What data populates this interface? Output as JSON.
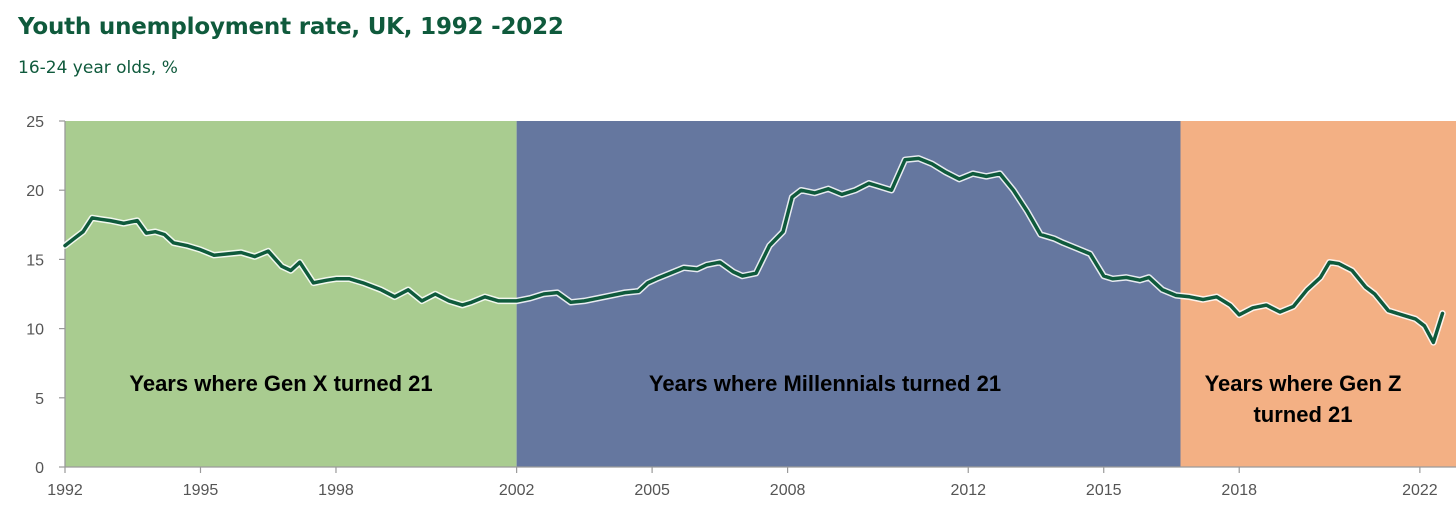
{
  "title": "Youth unemployment rate, UK, 1992 -2022",
  "subtitle": "16-24 year olds, %",
  "chart_data": {
    "type": "line",
    "title": "Youth unemployment rate, UK, 1992 -2022",
    "subtitle": "16-24 year olds, %",
    "xlabel": "",
    "ylabel": "",
    "xlim": [
      1992,
      2022.8
    ],
    "ylim": [
      0,
      25
    ],
    "yticks": [
      0,
      5,
      10,
      15,
      20,
      25
    ],
    "xticks": [
      1992,
      1995,
      1998,
      2002,
      2005,
      2008,
      2012,
      2015,
      2018,
      2022
    ],
    "grid": false,
    "legend": "none",
    "line_color": "#0f5a3c",
    "bands": [
      {
        "start": 1992,
        "end": 2002,
        "color": "#a9cc90",
        "label_lines": [
          "Years where Gen X turned 21"
        ]
      },
      {
        "start": 2002,
        "end": 2016.7,
        "color": "#65779f",
        "label_lines": [
          "Years where Millennials turned 21"
        ]
      },
      {
        "start": 2016.7,
        "end": 2022.8,
        "color": "#f3b084",
        "label_lines": [
          "Years where Gen Z",
          "turned 21"
        ]
      }
    ],
    "series": [
      {
        "x": [
          1992.0,
          1992.2,
          1992.4,
          1992.6,
          1992.8,
          1993.0,
          1993.3,
          1993.6,
          1993.8,
          1994.0,
          1994.2,
          1994.4,
          1994.7,
          1995.0,
          1995.3,
          1995.6,
          1995.9,
          1996.2,
          1996.5,
          1996.8,
          1997.0,
          1997.2,
          1997.5,
          1997.8,
          1998.0,
          1998.3,
          1998.6,
          1999.0,
          1999.3,
          1999.6,
          1999.9,
          2000.2,
          2000.5,
          2000.8,
          2001.0,
          2001.3,
          2001.6,
          2002.0,
          2002.3,
          2002.6,
          2002.9,
          2003.2,
          2003.5,
          2003.8,
          2004.1,
          2004.4,
          2004.7,
          2004.9,
          2005.1,
          2005.4,
          2005.7,
          2006.0,
          2006.2,
          2006.5,
          2006.8,
          2007.0,
          2007.3,
          2007.6,
          2007.9,
          2008.1,
          2008.3,
          2008.6,
          2008.9,
          2009.2,
          2009.5,
          2009.8,
          2010.0,
          2010.3,
          2010.6,
          2010.9,
          2011.2,
          2011.5,
          2011.8,
          2012.1,
          2012.4,
          2012.7,
          2013.0,
          2013.3,
          2013.6,
          2013.9,
          2014.1,
          2014.4,
          2014.7,
          2015.0,
          2015.2,
          2015.5,
          2015.8,
          2016.0,
          2016.3,
          2016.6,
          2016.9,
          2017.2,
          2017.5,
          2017.8,
          2018.0,
          2018.3,
          2018.6,
          2018.9,
          2019.2,
          2019.5,
          2019.8,
          2020.0,
          2020.2,
          2020.5,
          2020.8,
          2021.0,
          2021.3,
          2021.6,
          2021.9,
          2022.1,
          2022.3,
          2022.5
        ],
        "values": [
          16.0,
          16.5,
          17.0,
          18.0,
          17.9,
          17.8,
          17.6,
          17.8,
          16.9,
          17.0,
          16.8,
          16.2,
          16.0,
          15.7,
          15.3,
          15.4,
          15.5,
          15.2,
          15.6,
          14.5,
          14.2,
          14.8,
          13.3,
          13.5,
          13.6,
          13.6,
          13.3,
          12.8,
          12.3,
          12.8,
          12.0,
          12.5,
          12.0,
          11.7,
          11.9,
          12.3,
          12.0,
          12.0,
          12.2,
          12.5,
          12.6,
          11.9,
          12.0,
          12.2,
          12.4,
          12.6,
          12.7,
          13.3,
          13.6,
          14.0,
          14.4,
          14.3,
          14.6,
          14.8,
          14.1,
          13.8,
          14.0,
          16.0,
          17.0,
          19.5,
          20.0,
          19.8,
          20.1,
          19.7,
          20.0,
          20.5,
          20.3,
          20.0,
          22.2,
          22.3,
          21.9,
          21.3,
          20.8,
          21.2,
          21.0,
          21.2,
          20.0,
          18.5,
          16.8,
          16.5,
          16.2,
          15.8,
          15.4,
          13.8,
          13.6,
          13.7,
          13.5,
          13.7,
          12.8,
          12.4,
          12.3,
          12.1,
          12.3,
          11.7,
          11.0,
          11.5,
          11.7,
          11.2,
          11.6,
          12.8,
          13.7,
          14.8,
          14.7,
          14.2,
          13.0,
          12.5,
          11.3,
          11.0,
          10.7,
          10.2,
          9.0,
          11.1
        ]
      }
    ]
  }
}
